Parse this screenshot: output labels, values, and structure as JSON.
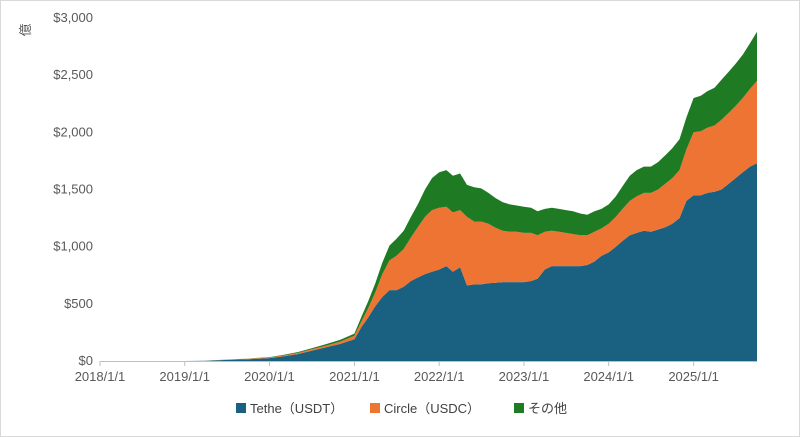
{
  "chart_data": {
    "type": "area",
    "stacked": true,
    "ylabel": "億",
    "ylim": [
      0,
      3000
    ],
    "y_ticks": [
      "$0",
      "$500",
      "$1,000",
      "$1,500",
      "$2,000",
      "$2,500",
      "$3,000"
    ],
    "x_ticks": [
      "2018/1/1",
      "2019/1/1",
      "2020/1/1",
      "2021/1/1",
      "2022/1/1",
      "2023/1/1",
      "2024/1/1",
      "2025/1/1"
    ],
    "x_range": [
      "2018-01-01",
      "2025-10-01"
    ],
    "grid": false,
    "legend_position": "bottom",
    "x": [
      "2018-01-01",
      "2019-01-01",
      "2019-04-01",
      "2019-07-01",
      "2019-10-01",
      "2020-01-01",
      "2020-03-01",
      "2020-05-01",
      "2020-07-01",
      "2020-09-01",
      "2020-11-01",
      "2021-01-01",
      "2021-02-01",
      "2021-03-01",
      "2021-04-01",
      "2021-05-01",
      "2021-06-01",
      "2021-07-01",
      "2021-08-01",
      "2021-09-01",
      "2021-10-01",
      "2021-11-01",
      "2021-12-01",
      "2022-01-01",
      "2022-02-01",
      "2022-03-01",
      "2022-04-01",
      "2022-05-01",
      "2022-06-01",
      "2022-07-01",
      "2022-08-01",
      "2022-09-01",
      "2022-10-01",
      "2022-11-01",
      "2022-12-01",
      "2023-01-01",
      "2023-02-01",
      "2023-03-01",
      "2023-04-01",
      "2023-05-01",
      "2023-06-01",
      "2023-07-01",
      "2023-08-01",
      "2023-09-01",
      "2023-10-01",
      "2023-11-01",
      "2023-12-01",
      "2024-01-01",
      "2024-02-01",
      "2024-03-01",
      "2024-04-01",
      "2024-05-01",
      "2024-06-01",
      "2024-07-01",
      "2024-08-01",
      "2024-09-01",
      "2024-10-01",
      "2024-11-01",
      "2024-12-01",
      "2025-01-01",
      "2025-02-01",
      "2025-03-01",
      "2025-04-01",
      "2025-05-01",
      "2025-06-01",
      "2025-07-01",
      "2025-08-01",
      "2025-09-01",
      "2025-10-01"
    ],
    "series": [
      {
        "name": "Tethe（USDT）",
        "color": "#1a6081",
        "values": [
          0,
          0,
          2,
          10,
          15,
          25,
          40,
          60,
          90,
          120,
          150,
          190,
          300,
          380,
          480,
          560,
          620,
          620,
          650,
          700,
          730,
          760,
          780,
          800,
          830,
          780,
          820,
          660,
          670,
          670,
          680,
          685,
          690,
          690,
          690,
          690,
          700,
          720,
          800,
          830,
          830,
          830,
          830,
          830,
          840,
          870,
          920,
          950,
          1000,
          1050,
          1100,
          1120,
          1140,
          1130,
          1150,
          1170,
          1200,
          1250,
          1400,
          1450,
          1450,
          1470,
          1480,
          1500,
          1550,
          1600,
          1650,
          1700,
          1730
        ]
      },
      {
        "name": "Circle（USDC）",
        "color": "#ed7432",
        "values": [
          0,
          0,
          0,
          2,
          4,
          6,
          8,
          10,
          12,
          15,
          20,
          30,
          50,
          80,
          120,
          200,
          260,
          300,
          330,
          380,
          440,
          500,
          540,
          540,
          520,
          520,
          500,
          600,
          550,
          550,
          520,
          480,
          450,
          440,
          440,
          430,
          420,
          380,
          330,
          310,
          300,
          290,
          280,
          270,
          260,
          260,
          240,
          250,
          260,
          280,
          300,
          320,
          330,
          340,
          350,
          380,
          400,
          420,
          450,
          550,
          560,
          570,
          580,
          610,
          620,
          630,
          650,
          680,
          720
        ]
      },
      {
        "name": "その他",
        "color": "#1f7a24",
        "values": [
          0,
          0,
          0,
          1,
          2,
          3,
          5,
          8,
          10,
          13,
          15,
          20,
          40,
          60,
          80,
          100,
          130,
          150,
          160,
          180,
          200,
          240,
          280,
          310,
          320,
          320,
          320,
          280,
          300,
          290,
          270,
          260,
          250,
          240,
          230,
          230,
          220,
          210,
          200,
          200,
          200,
          200,
          200,
          190,
          180,
          180,
          170,
          170,
          180,
          200,
          220,
          230,
          230,
          230,
          240,
          250,
          260,
          270,
          280,
          300,
          310,
          320,
          330,
          350,
          360,
          370,
          380,
          400,
          430
        ]
      }
    ]
  }
}
